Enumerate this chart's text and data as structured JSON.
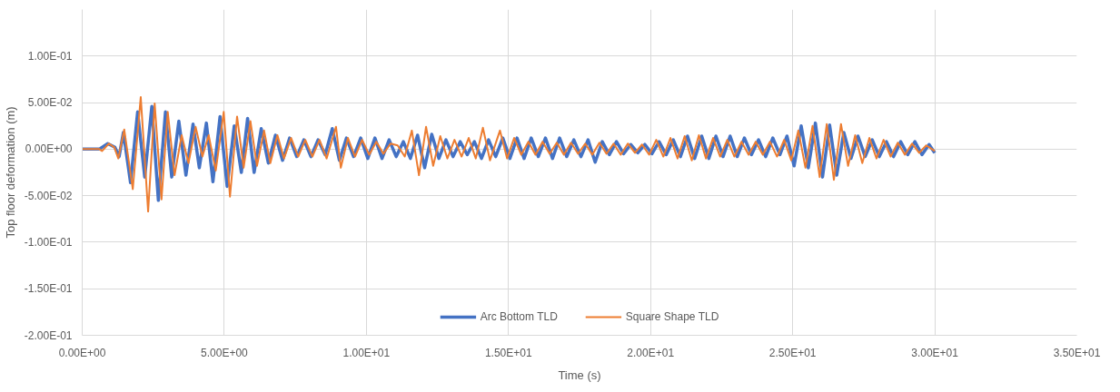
{
  "chart_data": {
    "type": "line",
    "xlabel": "Time (s)",
    "ylabel": "Top floor deformation (m)",
    "xlim": [
      0,
      35
    ],
    "ylim": [
      -0.2,
      0.15
    ],
    "xticks": [
      {
        "value": 0,
        "label": "0.00E+00"
      },
      {
        "value": 5,
        "label": "5.00E+00"
      },
      {
        "value": 10,
        "label": "1.00E+01"
      },
      {
        "value": 15,
        "label": "1.50E+01"
      },
      {
        "value": 20,
        "label": "2.00E+01"
      },
      {
        "value": 25,
        "label": "2.50E+01"
      },
      {
        "value": 30,
        "label": "3.00E+01"
      },
      {
        "value": 35,
        "label": "3.50E+01"
      }
    ],
    "yticks": [
      {
        "value": -0.2,
        "label": "-2.00E-01"
      },
      {
        "value": -0.15,
        "label": "-1.50E-01"
      },
      {
        "value": -0.1,
        "label": "-1.00E-01"
      },
      {
        "value": -0.05,
        "label": "-5.00E-02"
      },
      {
        "value": 0,
        "label": "0.00E+00"
      },
      {
        "value": 0.05,
        "label": "5.00E-02"
      },
      {
        "value": 0.1,
        "label": "1.00E-01"
      }
    ],
    "grid": true,
    "legend": "bottom",
    "line_style": "solid",
    "marker": "none",
    "series": [
      {
        "name": "Arc Bottom TLD",
        "color": "#4472c4",
        "x": [
          0,
          0.6,
          0.9,
          1.15,
          1.3,
          1.45,
          1.7,
          1.95,
          2.2,
          2.45,
          2.68,
          2.93,
          3.15,
          3.4,
          3.65,
          3.9,
          4.12,
          4.37,
          4.6,
          4.85,
          5.1,
          5.35,
          5.6,
          5.82,
          6.05,
          6.3,
          6.55,
          6.8,
          7.05,
          7.3,
          7.55,
          7.8,
          8.05,
          8.3,
          8.55,
          8.8,
          9.05,
          9.3,
          9.55,
          9.8,
          10.05,
          10.3,
          10.55,
          10.8,
          11.05,
          11.3,
          11.55,
          11.8,
          12.05,
          12.3,
          12.55,
          12.8,
          13.05,
          13.3,
          13.55,
          13.8,
          14.05,
          14.3,
          14.55,
          14.8,
          15.05,
          15.3,
          15.55,
          15.8,
          16.05,
          16.3,
          16.55,
          16.8,
          17.05,
          17.3,
          17.55,
          17.8,
          18.05,
          18.3,
          18.55,
          18.8,
          19.05,
          19.3,
          19.55,
          19.8,
          20.05,
          20.3,
          20.55,
          20.8,
          21.05,
          21.3,
          21.55,
          21.8,
          22.05,
          22.3,
          22.55,
          22.8,
          23.05,
          23.3,
          23.55,
          23.8,
          24.05,
          24.3,
          24.55,
          24.8,
          25.05,
          25.3,
          25.55,
          25.8,
          26.05,
          26.3,
          26.55,
          26.8,
          27.05,
          27.3,
          27.55,
          27.8,
          28.05,
          28.3,
          28.55,
          28.8,
          29.05,
          29.3,
          29.55,
          29.8,
          30.0
        ],
        "values": [
          0,
          0,
          0.006,
          0.002,
          -0.008,
          0.018,
          -0.036,
          0.04,
          -0.03,
          0.046,
          -0.055,
          0.04,
          -0.03,
          0.03,
          -0.028,
          0.027,
          -0.02,
          0.028,
          -0.035,
          0.035,
          -0.04,
          0.025,
          -0.025,
          0.033,
          -0.025,
          0.022,
          -0.015,
          0.015,
          -0.012,
          0.012,
          -0.008,
          0.01,
          -0.008,
          0.01,
          -0.006,
          0.022,
          -0.012,
          0.012,
          -0.008,
          0.012,
          -0.01,
          0.012,
          -0.01,
          0.01,
          -0.008,
          0.008,
          -0.01,
          0.015,
          -0.02,
          0.016,
          -0.01,
          0.01,
          -0.008,
          0.008,
          -0.006,
          0.008,
          -0.01,
          0.01,
          -0.008,
          0.012,
          -0.01,
          0.012,
          -0.01,
          0.012,
          -0.008,
          0.012,
          -0.01,
          0.012,
          -0.008,
          0.01,
          -0.008,
          0.01,
          -0.014,
          0.008,
          -0.006,
          0.008,
          -0.005,
          0.005,
          -0.004,
          0.005,
          -0.005,
          0.008,
          -0.006,
          0.01,
          -0.008,
          0.014,
          -0.01,
          0.014,
          -0.01,
          0.014,
          -0.008,
          0.014,
          -0.008,
          0.012,
          -0.006,
          0.01,
          -0.008,
          0.012,
          -0.006,
          0.014,
          -0.018,
          0.025,
          -0.02,
          0.028,
          -0.03,
          0.026,
          -0.028,
          0.018,
          -0.01,
          0.014,
          -0.008,
          0.01,
          -0.008,
          0.008,
          -0.008,
          0.008,
          -0.006,
          0.008,
          -0.006,
          0.005,
          -0.004
        ]
      },
      {
        "name": "Square Shape TLD",
        "color": "#ed7d31",
        "x": [
          0,
          0.6,
          0.7,
          0.94,
          1.13,
          1.27,
          1.48,
          1.78,
          2.06,
          2.32,
          2.55,
          2.79,
          3.01,
          3.25,
          3.5,
          3.74,
          3.99,
          4.23,
          4.45,
          4.7,
          4.98,
          5.2,
          5.45,
          5.68,
          5.92,
          6.15,
          6.4,
          6.62,
          6.87,
          7.1,
          7.35,
          7.6,
          7.85,
          8.1,
          8.35,
          8.6,
          8.93,
          9.1,
          9.35,
          9.6,
          9.85,
          10.1,
          10.35,
          10.6,
          10.85,
          11.1,
          11.35,
          11.6,
          11.85,
          12.1,
          12.35,
          12.6,
          12.85,
          13.1,
          13.35,
          13.6,
          13.85,
          14.1,
          14.35,
          14.7,
          14.95,
          15.2,
          15.45,
          15.7,
          15.95,
          16.2,
          16.45,
          16.7,
          16.95,
          17.2,
          17.45,
          17.7,
          17.95,
          18.2,
          18.45,
          18.7,
          18.95,
          19.2,
          19.45,
          19.7,
          19.95,
          20.2,
          20.45,
          20.7,
          20.95,
          21.2,
          21.45,
          21.7,
          21.95,
          22.2,
          22.45,
          22.7,
          22.95,
          23.2,
          23.45,
          23.7,
          23.95,
          24.2,
          24.45,
          24.7,
          24.95,
          25.2,
          25.45,
          25.7,
          25.95,
          26.2,
          26.45,
          26.7,
          26.95,
          27.2,
          27.45,
          27.7,
          27.95,
          28.2,
          28.45,
          28.7,
          28.95,
          29.2,
          29.45,
          29.7,
          30.0
        ],
        "values": [
          0,
          0,
          -0.002,
          0.006,
          0.002,
          -0.01,
          0.021,
          -0.043,
          0.056,
          -0.067,
          0.049,
          -0.054,
          0.04,
          -0.028,
          0.015,
          -0.015,
          0.024,
          -0.008,
          0.015,
          -0.023,
          0.04,
          -0.051,
          0.035,
          -0.02,
          0.03,
          -0.018,
          0.02,
          -0.015,
          0.015,
          -0.01,
          0.012,
          -0.008,
          0.01,
          -0.008,
          0.01,
          -0.01,
          0.024,
          -0.02,
          0.012,
          -0.008,
          0.01,
          -0.006,
          0.008,
          -0.005,
          0.006,
          0.004,
          -0.008,
          0.02,
          -0.028,
          0.024,
          -0.018,
          0.014,
          -0.01,
          0.01,
          -0.008,
          0.012,
          -0.01,
          0.023,
          -0.012,
          0.02,
          -0.01,
          0.012,
          -0.006,
          0.008,
          -0.006,
          0.008,
          -0.005,
          0.007,
          -0.006,
          0.007,
          -0.005,
          0.006,
          -0.006,
          0.007,
          -0.005,
          0.006,
          -0.006,
          0.006,
          -0.004,
          0.005,
          -0.006,
          0.01,
          -0.008,
          0.012,
          -0.01,
          0.014,
          -0.012,
          0.015,
          -0.01,
          0.012,
          -0.008,
          0.01,
          -0.008,
          0.008,
          -0.006,
          0.008,
          -0.006,
          0.008,
          -0.008,
          0.01,
          -0.012,
          0.02,
          -0.02,
          0.025,
          -0.03,
          0.027,
          -0.033,
          0.027,
          -0.018,
          0.015,
          -0.015,
          0.012,
          -0.01,
          0.01,
          -0.008,
          0.007,
          -0.006,
          0.006,
          -0.004,
          0.004,
          -0.002
        ]
      }
    ]
  }
}
